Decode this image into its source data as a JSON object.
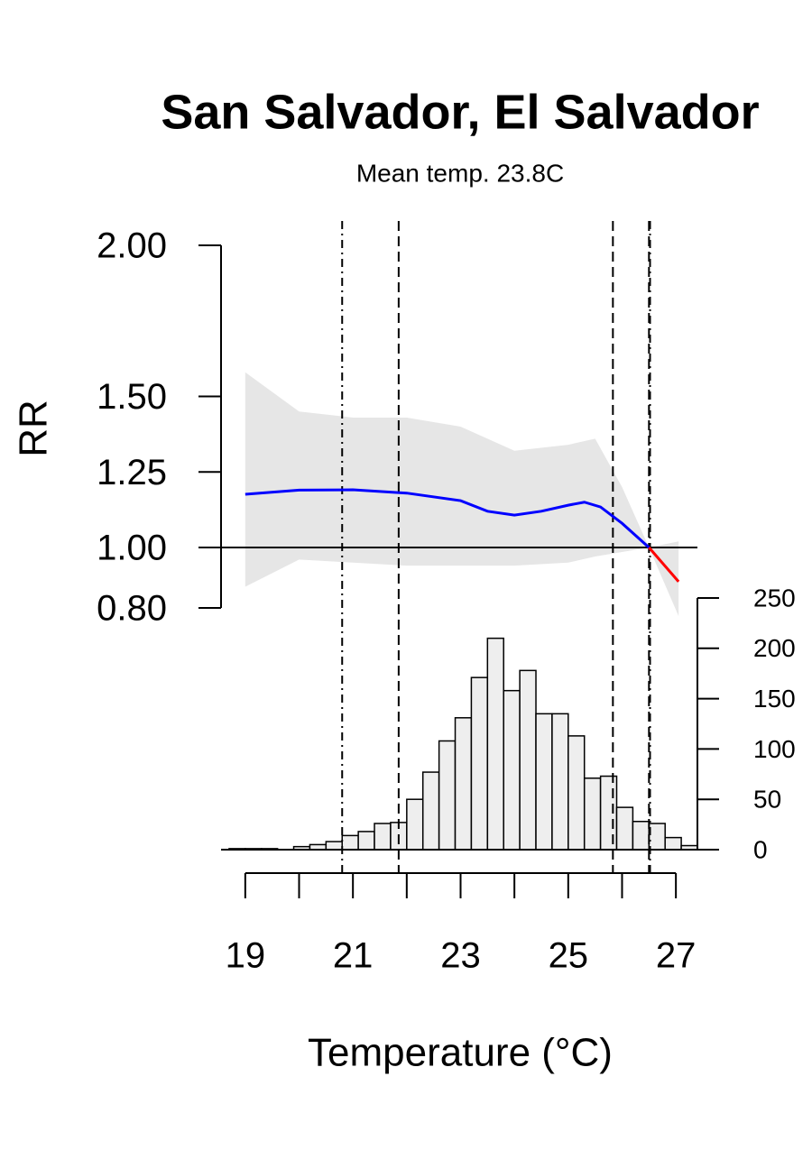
{
  "chart_data": [
    {
      "type": "line",
      "title": "San Salvador, El Salvador",
      "subtitle": "Mean temp. 23.8C",
      "ylabel": "RR",
      "xlabel": "Temperature (°C)",
      "xlim": [
        18.55,
        27.4
      ],
      "xticks": [
        19,
        21,
        23,
        25,
        27
      ],
      "xminor_ticks": [
        20,
        22,
        24,
        26
      ],
      "ylim": [
        0.8,
        2.0
      ],
      "yticks": [
        {
          "value": 0.8,
          "label": "0.80"
        },
        {
          "value": 1,
          "label": "1.00"
        },
        {
          "value": 1.25,
          "label": "1.25"
        },
        {
          "value": 1.5,
          "label": "1.50"
        },
        {
          "value": 2,
          "label": "2.00"
        }
      ],
      "band": {
        "color": "#e6e6e6",
        "x": [
          19,
          20,
          21,
          22,
          23,
          24,
          25,
          25.5,
          26,
          26.5,
          27.05
        ],
        "upper": [
          1.58,
          1.45,
          1.43,
          1.43,
          1.4,
          1.32,
          1.34,
          1.36,
          1.2,
          1.0,
          1.02
        ],
        "lower": [
          0.87,
          0.96,
          0.95,
          0.94,
          0.94,
          0.94,
          0.95,
          0.97,
          0.985,
          1.0,
          0.773
        ]
      },
      "series": [
        {
          "color": "#0000ff",
          "x": [
            19,
            20,
            21,
            22,
            23,
            23.5,
            24,
            24.5,
            25,
            25.3,
            25.6,
            26,
            26.5
          ],
          "values": [
            1.176,
            1.19,
            1.191,
            1.18,
            1.155,
            1.12,
            1.107,
            1.12,
            1.14,
            1.15,
            1.134,
            1.08,
            1.0
          ]
        },
        {
          "color": "#ff0000",
          "x": [
            26.5,
            27.05
          ],
          "values": [
            1.0,
            0.887
          ]
        }
      ],
      "hline": 1,
      "vlines": [
        {
          "x": 20.8,
          "style": "dotdash"
        },
        {
          "x": 21.85,
          "style": "dashed"
        },
        {
          "x": 25.83,
          "style": "dashed"
        },
        {
          "x": 26.52,
          "style": "dotdash"
        },
        {
          "x": 26.5,
          "style": "dashed"
        }
      ]
    },
    {
      "type": "histogram",
      "color": "#eeeeee",
      "bins": [
        18.7,
        19.0,
        19.3,
        19.6,
        19.9,
        20.2,
        20.5,
        20.8,
        21.1,
        21.4,
        21.7,
        22.0,
        22.3,
        22.6,
        22.9,
        23.2,
        23.5,
        23.8,
        24.1,
        24.4,
        24.7,
        25.0,
        25.3,
        25.6,
        25.9,
        26.2,
        26.5,
        26.8,
        27.1,
        27.4
      ],
      "counts": [
        1,
        1,
        1,
        0,
        3,
        5,
        8,
        14,
        18,
        26,
        27,
        50,
        77,
        108,
        131,
        171,
        210,
        158,
        178,
        135,
        135,
        113,
        71,
        73,
        42,
        28,
        26,
        12,
        4
      ],
      "ylim": [
        0,
        250
      ],
      "yticks": [
        0,
        50,
        100,
        150,
        200,
        250
      ]
    }
  ]
}
